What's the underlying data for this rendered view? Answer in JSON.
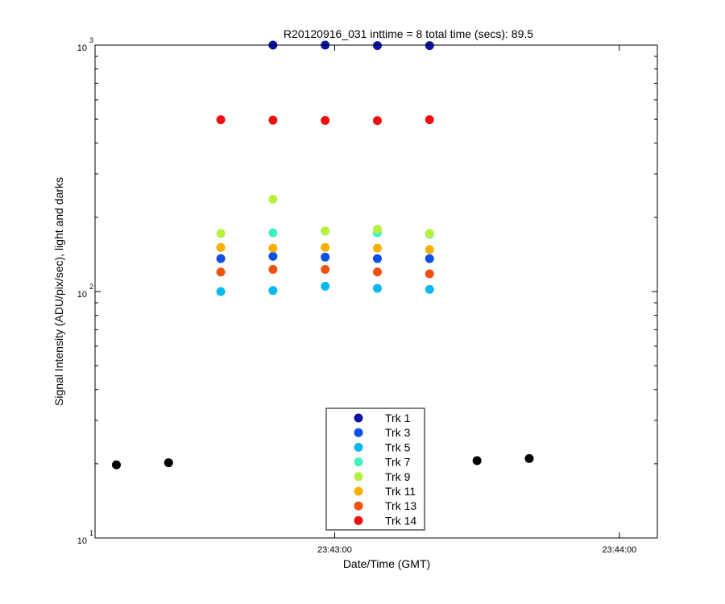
{
  "chart_data": {
    "type": "scatter",
    "title": "R20120916_031 inttime = 8 total time (secs): 89.5",
    "xlabel": "Date/Time (GMT)",
    "ylabel": "Signal Intensity (ADU/pix/sec), light and darks",
    "yscale": "log",
    "ylim": [
      10,
      1000
    ],
    "xlim": [
      "23:42:09.5",
      "23:44:08"
    ],
    "x_ticks": [
      "23:43:00",
      "23:44:00"
    ],
    "y_ticks": [
      {
        "base": "10",
        "exp": "1"
      },
      {
        "base": "10",
        "exp": "2"
      },
      {
        "base": "10",
        "exp": "3"
      }
    ],
    "legend_position": "bottom-center",
    "series": [
      {
        "name": "Trk 1",
        "color": "#0a14a8",
        "x": [
          "23:42:47",
          "23:42:58",
          "23:43:09",
          "23:43:20"
        ],
        "y": [
          1000,
          1000,
          995,
          995
        ]
      },
      {
        "name": "Trk 3",
        "color": "#0a50e6",
        "x": [
          "23:42:36",
          "23:42:47",
          "23:42:58",
          "23:43:09",
          "23:43:20"
        ],
        "y": [
          136,
          139,
          138,
          136,
          136
        ]
      },
      {
        "name": "Trk 5",
        "color": "#0ab8f0",
        "x": [
          "23:42:36",
          "23:42:47",
          "23:42:58",
          "23:43:09",
          "23:43:20"
        ],
        "y": [
          100,
          101,
          105,
          103,
          102
        ]
      },
      {
        "name": "Trk 7",
        "color": "#40f0c0",
        "x": [
          "23:42:47",
          "23:42:58",
          "23:43:09",
          "23:43:20"
        ],
        "y": [
          173,
          176,
          173,
          171
        ]
      },
      {
        "name": "Trk 9",
        "color": "#b8f040",
        "x": [
          "23:42:36",
          "23:42:47",
          "23:42:58",
          "23:43:09",
          "23:43:20"
        ],
        "y": [
          172,
          237,
          176,
          179,
          172
        ]
      },
      {
        "name": "Trk 11",
        "color": "#f8b000",
        "x": [
          "23:42:36",
          "23:42:47",
          "23:42:58",
          "23:43:09",
          "23:43:20"
        ],
        "y": [
          151,
          150,
          151,
          150,
          148
        ]
      },
      {
        "name": "Trk 13",
        "color": "#f05010",
        "x": [
          "23:42:36",
          "23:42:47",
          "23:42:58",
          "23:43:09",
          "23:43:20"
        ],
        "y": [
          120,
          123,
          123,
          120,
          118
        ]
      },
      {
        "name": "Trk 14",
        "color": "#ee1010",
        "x": [
          "23:42:36",
          "23:42:47",
          "23:42:58",
          "23:43:09",
          "23:43:20"
        ],
        "y": [
          498,
          496,
          495,
          494,
          498
        ]
      }
    ],
    "darks": {
      "color": "#000000",
      "x": [
        "23:42:14",
        "23:42:25",
        "23:43:30",
        "23:43:41"
      ],
      "y": [
        19.8,
        20.2,
        20.6,
        21.0
      ]
    }
  }
}
